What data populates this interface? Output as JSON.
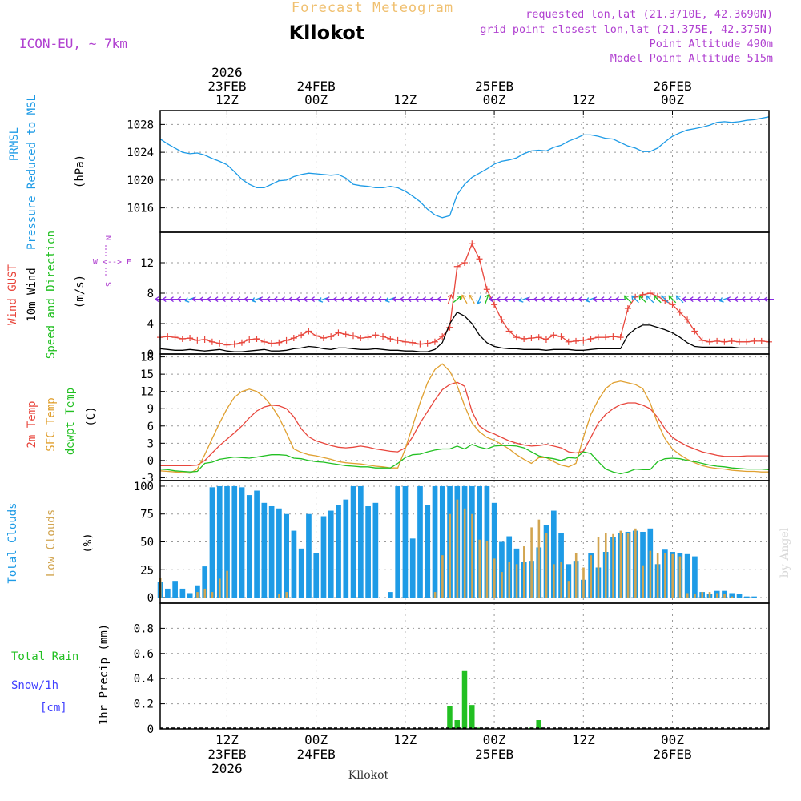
{
  "header": {
    "title": "Forecast Meteogram",
    "location": "Kllokot",
    "model": "ICON-EU, ~ 7km",
    "requested": "requested lon,lat (21.3710E, 42.3690N)",
    "gridpoint": "grid point closest lon,lat (21.375E, 42.375N)",
    "point_alt": "Point Altitude 490m",
    "model_alt": "Model Point Altitude 515m",
    "footer_name": "Kllokot",
    "credit": "by Angel"
  },
  "colors": {
    "pressure": "#1e9be6",
    "gust": "#e8463c",
    "wind": "#000000",
    "winddir": "#22c022",
    "t2m": "#e8463c",
    "sfc": "#e0a030",
    "dew": "#22c022",
    "total": "#1e9be6",
    "low": "#d2a550",
    "rain": "#22c022",
    "snow": "#4040ff",
    "purple": "#b040d0",
    "header": "#f0c070"
  },
  "chart_data": {
    "type": "meteogram",
    "time_axis": {
      "start_hour": 0,
      "end_hour": 82,
      "note": "hours since 23 FEB 2026 03Z (hourly steps)",
      "top_ticks": [
        {
          "hour": 9,
          "lines": [
            "2026",
            "23FEB",
            "12Z"
          ]
        },
        {
          "hour": 21,
          "lines": [
            "24FEB",
            "00Z"
          ]
        },
        {
          "hour": 33,
          "lines": [
            "12Z"
          ]
        },
        {
          "hour": 45,
          "lines": [
            "25FEB",
            "00Z"
          ]
        },
        {
          "hour": 57,
          "lines": [
            "12Z"
          ]
        },
        {
          "hour": 69,
          "lines": [
            "26FEB",
            "00Z"
          ]
        }
      ],
      "bottom_ticks": [
        {
          "hour": 9,
          "lines": [
            "12Z",
            "23FEB",
            "2026"
          ]
        },
        {
          "hour": 21,
          "lines": [
            "00Z",
            "24FEB"
          ]
        },
        {
          "hour": 33,
          "lines": [
            "12Z"
          ]
        },
        {
          "hour": 45,
          "lines": [
            "00Z",
            "25FEB"
          ]
        },
        {
          "hour": 57,
          "lines": [
            "12Z"
          ]
        },
        {
          "hour": 69,
          "lines": [
            "00Z",
            "26FEB"
          ]
        }
      ]
    },
    "panels": [
      {
        "id": "pressure",
        "labels": [
          "PRMSL",
          "Pressure Reduced to MSL"
        ],
        "unit": "(hPa)",
        "ylim": [
          1012.5,
          1030
        ],
        "yticks": [
          1016,
          1020,
          1024,
          1028
        ],
        "series": [
          {
            "name": "PRMSL",
            "color": "#1e9be6",
            "values": [
              1025.9,
              1025.2,
              1024.6,
              1024.0,
              1023.8,
              1023.9,
              1023.6,
              1023.1,
              1022.7,
              1022.2,
              1021.2,
              1020.1,
              1019.4,
              1018.9,
              1018.9,
              1019.4,
              1019.9,
              1020.0,
              1020.5,
              1020.8,
              1021.0,
              1020.9,
              1020.8,
              1020.7,
              1020.8,
              1020.3,
              1019.4,
              1019.2,
              1019.1,
              1018.9,
              1018.9,
              1019.1,
              1018.9,
              1018.4,
              1017.7,
              1016.9,
              1015.8,
              1015.0,
              1014.6,
              1014.9,
              1017.9,
              1019.4,
              1020.4,
              1021.0,
              1021.6,
              1022.3,
              1022.7,
              1022.9,
              1023.2,
              1023.8,
              1024.2,
              1024.3,
              1024.2,
              1024.7,
              1025.0,
              1025.6,
              1026.0,
              1026.5,
              1026.5,
              1026.3,
              1026.0,
              1025.9,
              1025.4,
              1024.9,
              1024.6,
              1024.1,
              1024.1,
              1024.6,
              1025.5,
              1026.3,
              1026.8,
              1027.2,
              1027.4,
              1027.6,
              1027.9,
              1028.3,
              1028.4,
              1028.3,
              1028.4,
              1028.6,
              1028.7,
              1028.9,
              1029.1
            ]
          }
        ]
      },
      {
        "id": "wind",
        "labels": [
          "Wind GUST",
          "10m Wind",
          "Speed and Direction"
        ],
        "unit": "(m/s)",
        "compass": [
          "N",
          "W <--> E",
          "S"
        ],
        "ylim": [
          0,
          16
        ],
        "yticks": [
          0,
          4,
          8,
          12
        ],
        "series": [
          {
            "name": "Wind GUST",
            "color": "#e8463c",
            "marker": "+",
            "values": [
              2.2,
              2.3,
              2.2,
              2.0,
              2.1,
              1.8,
              1.9,
              1.6,
              1.4,
              1.2,
              1.3,
              1.5,
              1.9,
              2.0,
              1.6,
              1.4,
              1.5,
              1.8,
              2.1,
              2.5,
              3.0,
              2.4,
              2.1,
              2.3,
              2.8,
              2.6,
              2.4,
              2.1,
              2.2,
              2.5,
              2.3,
              2.0,
              1.8,
              1.6,
              1.5,
              1.3,
              1.4,
              1.6,
              2.3,
              3.5,
              11.5,
              12.0,
              14.5,
              12.5,
              8.5,
              6.5,
              4.5,
              3.0,
              2.2,
              2.0,
              2.1,
              2.2,
              1.9,
              2.5,
              2.3,
              1.6,
              1.7,
              1.8,
              2.0,
              2.2,
              2.2,
              2.3,
              2.2,
              6.0,
              7.5,
              7.8,
              8.0,
              7.6,
              7.0,
              6.5,
              5.5,
              4.5,
              3.0,
              1.8,
              1.6,
              1.7,
              1.6,
              1.7,
              1.6,
              1.6,
              1.7,
              1.7,
              1.6
            ]
          },
          {
            "name": "10m Wind",
            "color": "#000000",
            "values": [
              0.7,
              0.6,
              0.5,
              0.5,
              0.6,
              0.5,
              0.4,
              0.5,
              0.6,
              0.4,
              0.3,
              0.3,
              0.4,
              0.5,
              0.6,
              0.4,
              0.4,
              0.5,
              0.7,
              0.8,
              1.0,
              0.9,
              0.7,
              0.6,
              0.8,
              0.8,
              0.7,
              0.6,
              0.6,
              0.7,
              0.6,
              0.5,
              0.5,
              0.4,
              0.4,
              0.3,
              0.3,
              0.6,
              1.5,
              4.0,
              5.5,
              5.0,
              4.0,
              2.5,
              1.5,
              1.0,
              0.8,
              0.7,
              0.7,
              0.6,
              0.6,
              0.6,
              0.5,
              0.6,
              0.6,
              0.6,
              0.5,
              0.5,
              0.6,
              0.7,
              0.7,
              0.7,
              0.7,
              2.5,
              3.3,
              3.8,
              3.8,
              3.5,
              3.2,
              2.8,
              2.2,
              1.5,
              1.0,
              0.9,
              0.9,
              0.9,
              0.9,
              0.9,
              0.8,
              0.8,
              0.8,
              0.8,
              0.8
            ]
          },
          {
            "name": "Speed and Direction (arrows)",
            "color": "#22c022",
            "plotted_at_y": 7.2
          }
        ]
      },
      {
        "id": "temp",
        "labels": [
          "2m Temp",
          "SFC Temp",
          "dewpt Temp"
        ],
        "unit": "(C)",
        "ylim": [
          -3.5,
          18.5
        ],
        "yticks": [
          -3,
          0,
          3,
          6,
          9,
          12,
          15,
          18
        ],
        "series": [
          {
            "name": "2m Temp",
            "color": "#e8463c",
            "values": [
              -0.9,
              -0.9,
              -0.9,
              -0.9,
              -0.9,
              -0.8,
              0.0,
              1.3,
              2.6,
              3.7,
              4.8,
              6.0,
              7.4,
              8.6,
              9.3,
              9.6,
              9.5,
              9.0,
              7.6,
              5.5,
              4.1,
              3.4,
              3.0,
              2.6,
              2.3,
              2.2,
              2.3,
              2.5,
              2.3,
              2.0,
              1.8,
              1.6,
              1.5,
              2.2,
              4.1,
              6.5,
              8.5,
              10.5,
              12.3,
              13.2,
              13.6,
              12.9,
              8.5,
              6.0,
              5.1,
              4.6,
              4.0,
              3.4,
              3.0,
              2.7,
              2.5,
              2.6,
              2.8,
              2.5,
              2.2,
              1.5,
              1.3,
              1.6,
              4.0,
              6.5,
              8.0,
              9.0,
              9.7,
              10.0,
              10.0,
              9.6,
              9.0,
              7.5,
              5.5,
              4.0,
              3.2,
              2.5,
              2.0,
              1.5,
              1.2,
              0.9,
              0.7,
              0.7,
              0.7,
              0.8,
              0.8,
              0.8,
              0.8
            ]
          },
          {
            "name": "SFC Temp",
            "color": "#e0a030",
            "values": [
              -1.8,
              -1.9,
              -2.0,
              -2.1,
              -2.2,
              -1.5,
              1.0,
              3.8,
              6.5,
              9.0,
              11.0,
              12.0,
              12.4,
              12.0,
              11.0,
              9.5,
              7.5,
              4.8,
              2.0,
              1.4,
              1.0,
              0.8,
              0.5,
              0.2,
              -0.2,
              -0.4,
              -0.5,
              -0.6,
              -0.8,
              -1.0,
              -1.1,
              -1.3,
              -1.3,
              2.0,
              6.0,
              10.0,
              13.5,
              15.8,
              16.8,
              15.5,
              13.0,
              9.5,
              6.5,
              5.0,
              4.0,
              3.5,
              2.8,
              2.0,
              1.0,
              0.2,
              -0.5,
              0.5,
              0.5,
              -0.2,
              -0.8,
              -1.1,
              -0.5,
              4.0,
              8.0,
              10.5,
              12.5,
              13.5,
              13.8,
              13.5,
              13.2,
              12.5,
              10.0,
              6.5,
              3.8,
              2.0,
              1.0,
              0.2,
              -0.4,
              -0.9,
              -1.2,
              -1.4,
              -1.5,
              -1.7,
              -1.8,
              -1.9,
              -1.9,
              -2.0,
              -2.0
            ]
          },
          {
            "name": "dewpt Temp",
            "color": "#22c022",
            "values": [
              -1.5,
              -1.6,
              -1.8,
              -1.9,
              -2.0,
              -1.9,
              -0.5,
              -0.3,
              0.2,
              0.4,
              0.6,
              0.5,
              0.4,
              0.6,
              0.8,
              1.0,
              1.0,
              0.9,
              0.4,
              0.3,
              0.0,
              -0.2,
              -0.3,
              -0.5,
              -0.7,
              -0.9,
              -1.0,
              -1.1,
              -1.1,
              -1.3,
              -1.3,
              -1.3,
              -0.5,
              0.5,
              1.0,
              1.1,
              1.5,
              1.8,
              2.0,
              2.0,
              2.5,
              2.0,
              2.8,
              2.3,
              2.0,
              2.5,
              2.6,
              2.6,
              2.5,
              2.2,
              1.5,
              0.8,
              0.5,
              0.3,
              0.0,
              0.5,
              0.4,
              1.5,
              1.2,
              -0.2,
              -1.5,
              -2.0,
              -2.3,
              -2.0,
              -1.5,
              -1.6,
              -1.6,
              -0.2,
              0.3,
              0.4,
              0.3,
              0.0,
              -0.2,
              -0.5,
              -0.8,
              -1.0,
              -1.1,
              -1.3,
              -1.4,
              -1.5,
              -1.5,
              -1.5,
              -1.6
            ]
          }
        ]
      },
      {
        "id": "clouds",
        "type": "bar",
        "labels": [
          "Total Clouds",
          "Low Clouds"
        ],
        "unit": "(%)",
        "ylim": [
          -5,
          105
        ],
        "yticks": [
          0,
          25,
          50,
          75,
          100
        ],
        "series": [
          {
            "name": "Total Clouds",
            "color": "#1e9be6",
            "values": [
              14,
              8,
              15,
              8,
              4,
              11,
              28,
              99,
              100,
              100,
              100,
              99,
              92,
              96,
              85,
              82,
              80,
              75,
              60,
              44,
              75,
              40,
              73,
              78,
              83,
              88,
              100,
              100,
              82,
              85,
              0,
              5,
              100,
              100,
              53,
              100,
              83,
              100,
              100,
              100,
              100,
              100,
              100,
              100,
              100,
              85,
              50,
              55,
              44,
              32,
              33,
              45,
              65,
              78,
              58,
              30,
              33,
              16,
              40,
              27,
              41,
              54,
              58,
              59,
              60,
              59,
              62,
              30,
              43,
              41,
              40,
              39,
              37,
              5,
              3,
              6,
              6,
              4,
              3,
              1,
              1,
              0,
              0
            ]
          },
          {
            "name": "Low Clouds",
            "color": "#d2a550",
            "values": [
              18,
              0,
              0,
              0,
              0,
              5,
              8,
              5,
              17,
              24,
              0,
              0,
              0,
              0,
              0,
              0,
              3,
              5,
              0,
              0,
              0,
              0,
              0,
              0,
              0,
              0,
              0,
              0,
              0,
              0,
              0,
              0,
              0,
              0,
              0,
              0,
              0,
              5,
              38,
              75,
              88,
              80,
              75,
              52,
              51,
              35,
              23,
              32,
              30,
              46,
              63,
              70,
              58,
              30,
              32,
              15,
              40,
              27,
              38,
              54,
              58,
              57,
              60,
              58,
              62,
              29,
              42,
              40,
              40,
              39,
              37,
              4,
              3,
              5,
              5,
              4,
              3,
              1,
              0,
              0,
              0,
              0,
              0
            ]
          }
        ]
      },
      {
        "id": "precip",
        "type": "bar",
        "labels": [
          "Total Rain",
          "Snow/1h",
          "[cm]"
        ],
        "unit": "1hr Precip (mm)",
        "ylim": [
          0,
          1.0
        ],
        "yticks": [
          0,
          0.2,
          0.4,
          0.6,
          0.8
        ],
        "series": [
          {
            "name": "Total Rain",
            "color": "#22c022",
            "values": [
              0,
              0,
              0,
              0,
              0,
              0,
              0,
              0,
              0,
              0,
              0,
              0,
              0,
              0,
              0,
              0,
              0,
              0,
              0,
              0,
              0,
              0,
              0,
              0,
              0,
              0,
              0,
              0,
              0,
              0,
              0,
              0,
              0,
              0,
              0,
              0,
              0,
              0,
              0,
              0.18,
              0.07,
              0.46,
              0.19,
              0.01,
              0,
              0,
              0,
              0,
              0,
              0,
              0.01,
              0.07,
              0,
              0,
              0,
              0,
              0,
              0,
              0,
              0,
              0,
              0,
              0,
              0,
              0,
              0,
              0,
              0,
              0,
              0,
              0,
              0,
              0,
              0,
              0,
              0,
              0,
              0,
              0,
              0,
              0,
              0,
              0
            ]
          }
        ]
      }
    ]
  }
}
